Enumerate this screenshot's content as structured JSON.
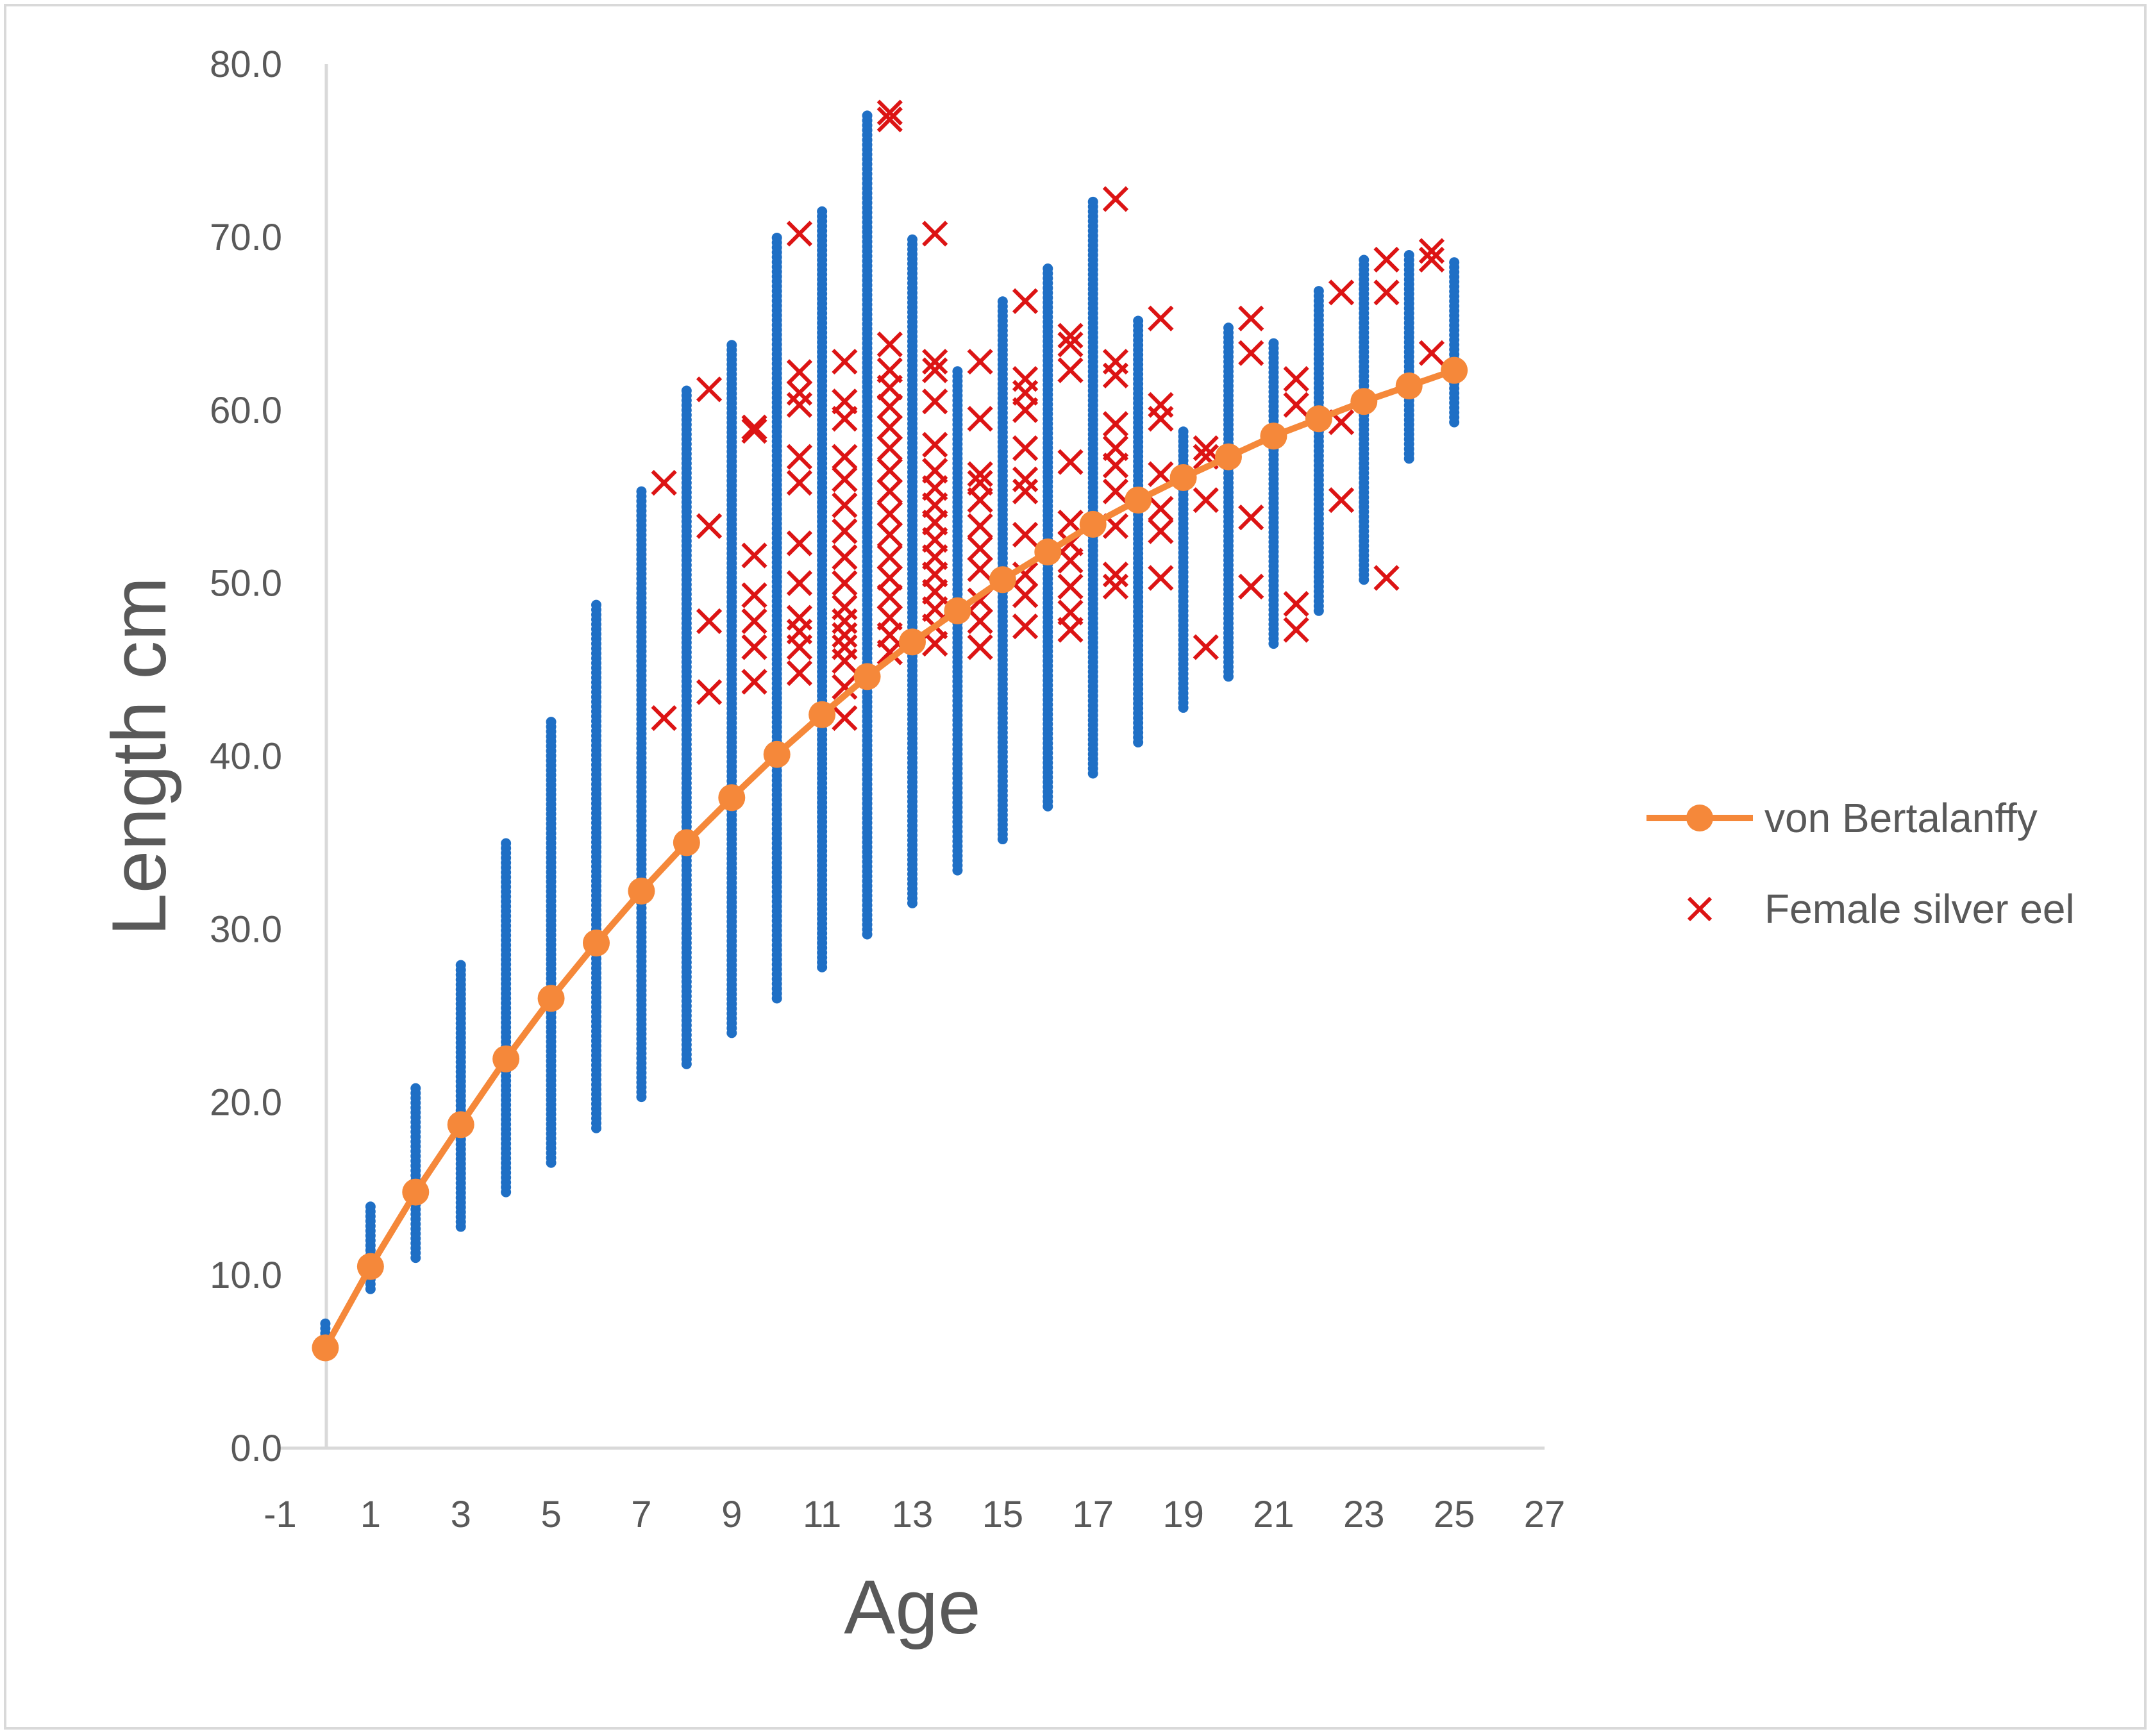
{
  "chart_data": {
    "type": "scatter",
    "title": "",
    "xlabel": "Age",
    "ylabel": "Length cm",
    "xlim": [
      -1,
      27
    ],
    "ylim": [
      0,
      80
    ],
    "x_ticks": [
      "-1",
      "1",
      "3",
      "5",
      "7",
      "9",
      "11",
      "13",
      "15",
      "17",
      "19",
      "21",
      "23",
      "25",
      "27"
    ],
    "y_ticks": [
      "0.0",
      "10.0",
      "20.0",
      "30.0",
      "40.0",
      "50.0",
      "60.0",
      "70.0",
      "80.0"
    ],
    "grid": false,
    "legend_position": "right",
    "colors": {
      "observed": "#1f6fc5",
      "vonBertalanffy": "#f5883a",
      "female": "#dc1414",
      "axis": "#d9d9d9"
    },
    "observed_ranges": [
      {
        "age": 0,
        "min": 5.8,
        "max": 7.2
      },
      {
        "age": 1,
        "min": 9.2,
        "max": 14.2
      },
      {
        "age": 2,
        "min": 11.0,
        "max": 21.0
      },
      {
        "age": 3,
        "min": 12.8,
        "max": 28.0
      },
      {
        "age": 4,
        "min": 14.8,
        "max": 35.0
      },
      {
        "age": 5,
        "min": 16.5,
        "max": 42.0
      },
      {
        "age": 6,
        "min": 18.5,
        "max": 48.8
      },
      {
        "age": 7,
        "min": 20.3,
        "max": 55.5
      },
      {
        "age": 8,
        "min": 22.2,
        "max": 61.2
      },
      {
        "age": 9,
        "min": 24.0,
        "max": 64.0
      },
      {
        "age": 10,
        "min": 26.0,
        "max": 70.0
      },
      {
        "age": 11,
        "min": 27.8,
        "max": 71.5
      },
      {
        "age": 12,
        "min": 29.7,
        "max": 77.2
      },
      {
        "age": 13,
        "min": 31.5,
        "max": 70.0
      },
      {
        "age": 14,
        "min": 33.4,
        "max": 62.5
      },
      {
        "age": 15,
        "min": 35.2,
        "max": 66.5
      },
      {
        "age": 16,
        "min": 37.1,
        "max": 68.4
      },
      {
        "age": 17,
        "min": 39.0,
        "max": 72.2
      },
      {
        "age": 18,
        "min": 40.8,
        "max": 65.2
      },
      {
        "age": 19,
        "min": 42.8,
        "max": 59.0
      },
      {
        "age": 20,
        "min": 44.6,
        "max": 65.0
      },
      {
        "age": 21,
        "min": 46.5,
        "max": 64.0
      },
      {
        "age": 22,
        "min": 48.4,
        "max": 67.0
      },
      {
        "age": 23,
        "min": 50.2,
        "max": 68.7
      },
      {
        "age": 24,
        "min": 57.2,
        "max": 69.2
      },
      {
        "age": 25,
        "min": 59.3,
        "max": 68.7
      }
    ],
    "series": [
      {
        "name": "von Bertalanffy",
        "type": "line",
        "x": [
          0,
          1,
          2,
          3,
          4,
          5,
          6,
          7,
          8,
          9,
          10,
          11,
          12,
          13,
          14,
          15,
          16,
          17,
          18,
          19,
          20,
          21,
          22,
          23,
          24,
          25
        ],
        "y": [
          5.8,
          10.5,
          14.8,
          18.7,
          22.5,
          26.0,
          29.2,
          32.2,
          35.0,
          37.6,
          40.1,
          42.4,
          44.6,
          46.6,
          48.4,
          50.2,
          51.8,
          53.4,
          54.8,
          56.1,
          57.3,
          58.5,
          59.5,
          60.5,
          61.4,
          62.3
        ]
      },
      {
        "name": "Female silver eel",
        "type": "scatter",
        "points": [
          [
            7.5,
            42.2
          ],
          [
            7.5,
            55.8
          ],
          [
            8.5,
            43.7
          ],
          [
            8.5,
            47.8
          ],
          [
            8.5,
            53.3
          ],
          [
            8.5,
            61.2
          ],
          [
            9.5,
            44.3
          ],
          [
            9.5,
            46.3
          ],
          [
            9.5,
            47.8
          ],
          [
            9.5,
            49.3
          ],
          [
            9.5,
            51.6
          ],
          [
            9.5,
            58.8
          ],
          [
            9.5,
            59.0
          ],
          [
            10.5,
            44.8
          ],
          [
            10.5,
            46.3
          ],
          [
            10.5,
            47.2
          ],
          [
            10.5,
            48.0
          ],
          [
            10.5,
            50.0
          ],
          [
            10.5,
            52.3
          ],
          [
            10.5,
            55.8
          ],
          [
            10.5,
            57.3
          ],
          [
            10.5,
            60.3
          ],
          [
            10.5,
            61.0
          ],
          [
            10.5,
            62.2
          ],
          [
            10.5,
            70.2
          ],
          [
            11.5,
            42.2
          ],
          [
            11.5,
            44.0
          ],
          [
            11.5,
            45.5
          ],
          [
            11.5,
            46.3
          ],
          [
            11.5,
            47.0
          ],
          [
            11.5,
            47.8
          ],
          [
            11.5,
            48.6
          ],
          [
            11.5,
            50.0
          ],
          [
            11.5,
            51.5
          ],
          [
            11.5,
            53.0
          ],
          [
            11.5,
            54.5
          ],
          [
            11.5,
            56.0
          ],
          [
            11.5,
            57.3
          ],
          [
            11.5,
            59.5
          ],
          [
            11.5,
            60.5
          ],
          [
            11.5,
            62.8
          ],
          [
            12.5,
            46.0
          ],
          [
            12.5,
            47.0
          ],
          [
            12.5,
            48.0
          ],
          [
            12.5,
            49.2
          ],
          [
            12.5,
            50.3
          ],
          [
            12.5,
            51.5
          ],
          [
            12.5,
            52.8
          ],
          [
            12.5,
            54.0
          ],
          [
            12.5,
            55.3
          ],
          [
            12.5,
            56.5
          ],
          [
            12.5,
            57.8
          ],
          [
            12.5,
            59.0
          ],
          [
            12.5,
            60.2
          ],
          [
            12.5,
            61.3
          ],
          [
            12.5,
            62.3
          ],
          [
            12.5,
            63.8
          ],
          [
            12.5,
            76.8
          ],
          [
            12.5,
            77.2
          ],
          [
            13.5,
            46.5
          ],
          [
            13.5,
            47.5
          ],
          [
            13.5,
            48.5
          ],
          [
            13.5,
            49.5
          ],
          [
            13.5,
            50.5
          ],
          [
            13.5,
            51.5
          ],
          [
            13.5,
            52.5
          ],
          [
            13.5,
            53.5
          ],
          [
            13.5,
            54.5
          ],
          [
            13.5,
            55.5
          ],
          [
            13.5,
            56.5
          ],
          [
            13.5,
            58.0
          ],
          [
            13.5,
            60.5
          ],
          [
            13.5,
            62.3
          ],
          [
            13.5,
            62.8
          ],
          [
            13.5,
            70.2
          ],
          [
            14.5,
            46.3
          ],
          [
            14.5,
            47.8
          ],
          [
            14.5,
            49.0
          ],
          [
            14.5,
            50.8
          ],
          [
            14.5,
            52.0
          ],
          [
            14.5,
            53.3
          ],
          [
            14.5,
            54.8
          ],
          [
            14.5,
            55.8
          ],
          [
            14.5,
            56.3
          ],
          [
            14.5,
            59.5
          ],
          [
            14.5,
            62.8
          ],
          [
            15.5,
            47.5
          ],
          [
            15.5,
            49.3
          ],
          [
            15.5,
            50.5
          ],
          [
            15.5,
            52.8
          ],
          [
            15.5,
            55.3
          ],
          [
            15.5,
            56.0
          ],
          [
            15.5,
            57.8
          ],
          [
            15.5,
            60.0
          ],
          [
            15.5,
            61.0
          ],
          [
            15.5,
            61.8
          ],
          [
            15.5,
            66.3
          ],
          [
            16.5,
            47.3
          ],
          [
            16.5,
            48.3
          ],
          [
            16.5,
            49.8
          ],
          [
            16.5,
            51.3
          ],
          [
            16.5,
            52.3
          ],
          [
            16.5,
            53.5
          ],
          [
            16.5,
            57.0
          ],
          [
            16.5,
            62.3
          ],
          [
            16.5,
            63.8
          ],
          [
            16.5,
            64.3
          ],
          [
            17.5,
            49.8
          ],
          [
            17.5,
            50.5
          ],
          [
            17.5,
            53.3
          ],
          [
            17.5,
            55.3
          ],
          [
            17.5,
            56.8
          ],
          [
            17.5,
            57.8
          ],
          [
            17.5,
            59.2
          ],
          [
            17.5,
            62.0
          ],
          [
            17.5,
            62.8
          ],
          [
            17.5,
            72.2
          ],
          [
            18.5,
            50.3
          ],
          [
            18.5,
            53.0
          ],
          [
            18.5,
            54.3
          ],
          [
            18.5,
            56.3
          ],
          [
            18.5,
            59.5
          ],
          [
            18.5,
            60.3
          ],
          [
            18.5,
            65.3
          ],
          [
            19.5,
            46.3
          ],
          [
            19.5,
            54.8
          ],
          [
            19.5,
            57.3
          ],
          [
            19.5,
            57.8
          ],
          [
            20.5,
            49.8
          ],
          [
            20.5,
            53.8
          ],
          [
            20.5,
            63.3
          ],
          [
            20.5,
            65.3
          ],
          [
            21.5,
            47.3
          ],
          [
            21.5,
            48.8
          ],
          [
            21.5,
            60.3
          ],
          [
            21.5,
            61.8
          ],
          [
            22.5,
            54.8
          ],
          [
            22.5,
            59.3
          ],
          [
            22.5,
            66.8
          ],
          [
            23.5,
            50.3
          ],
          [
            23.5,
            66.8
          ],
          [
            23.5,
            68.7
          ],
          [
            24.5,
            63.3
          ],
          [
            24.5,
            68.7
          ],
          [
            24.5,
            69.2
          ]
        ]
      }
    ]
  },
  "legend": {
    "items": [
      {
        "label": "von Bertalanffy",
        "color": "#f5883a",
        "marker": "circle-line"
      },
      {
        "label": "Female silver eel",
        "color": "#dc1414",
        "marker": "cross"
      }
    ]
  }
}
